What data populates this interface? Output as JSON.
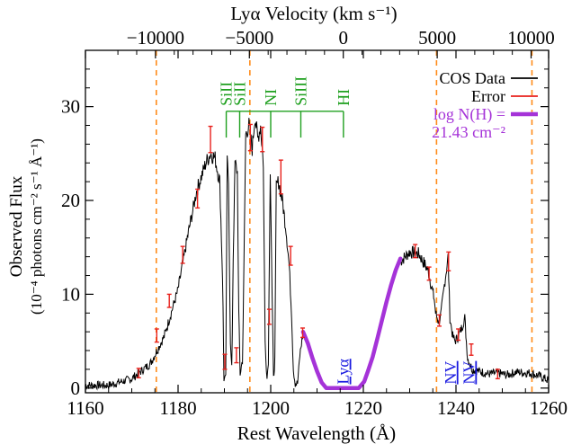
{
  "chart_data": {
    "type": "line",
    "xlabel": "Rest Wavelength (Å)",
    "xlim": [
      1160,
      1260
    ],
    "ylim": [
      -0.5,
      36
    ],
    "xticks": [
      1160,
      1180,
      1200,
      1220,
      1240,
      1260
    ],
    "yticks": [
      0,
      10,
      20,
      30
    ],
    "ylabel_line1": "Observed Flux",
    "ylabel_line2": "(10⁻⁴ photons cm⁻² s⁻¹ Å⁻¹)",
    "top_axis": {
      "label": "Lyα Velocity (km s⁻¹)",
      "ticks": [
        -10000,
        -5000,
        0,
        5000,
        10000
      ],
      "tick_labels": [
        "−10000",
        "−5000",
        "0",
        "5000",
        "10000"
      ],
      "center_wavelength": 1215.67
    },
    "colors": {
      "data": "#000000",
      "error": "#e8211c",
      "model": "#a533d8",
      "lines": "#1fa01f",
      "markers": "#ff8c1a",
      "nv_lya": "#1a1ae0"
    },
    "dashed_lines_x": [
      1175.3,
      1195.5,
      1235.8,
      1256.4
    ],
    "spectrum": {
      "name": "COS Data",
      "points": [
        [
          1160,
          0.3
        ],
        [
          1165,
          0.3
        ],
        [
          1170,
          1.0
        ],
        [
          1174,
          2.6
        ],
        [
          1177,
          5.5
        ],
        [
          1180,
          10.5
        ],
        [
          1182,
          16.0
        ],
        [
          1184,
          21.0
        ],
        [
          1186,
          24.0
        ],
        [
          1187,
          25.0
        ],
        [
          1188,
          24.5
        ],
        [
          1189,
          22.0
        ],
        [
          1189.6,
          12.0
        ],
        [
          1189.9,
          1.0
        ],
        [
          1190.3,
          1.0
        ],
        [
          1190.6,
          24.0
        ],
        [
          1190.9,
          22.5
        ],
        [
          1191.3,
          4.5
        ],
        [
          1191.6,
          2.0
        ],
        [
          1191.9,
          14.0
        ],
        [
          1192.3,
          24.0
        ],
        [
          1192.8,
          23.0
        ],
        [
          1193.1,
          8.0
        ],
        [
          1193.4,
          1.5
        ],
        [
          1193.9,
          3.0
        ],
        [
          1194.2,
          12.0
        ],
        [
          1194.6,
          27.0
        ],
        [
          1195.3,
          28.0
        ],
        [
          1196,
          25.5
        ],
        [
          1196.6,
          29.0
        ],
        [
          1197.2,
          26.5
        ],
        [
          1197.8,
          28.0
        ],
        [
          1198.4,
          24.0
        ],
        [
          1198.8,
          5.0
        ],
        [
          1199.2,
          1.0
        ],
        [
          1199.5,
          3.0
        ],
        [
          1199.9,
          23.5
        ],
        [
          1200.3,
          10.0
        ],
        [
          1200.6,
          1.0
        ],
        [
          1200.9,
          3.0
        ],
        [
          1201.2,
          21.5
        ],
        [
          1201.7,
          22.0
        ],
        [
          1202.5,
          20.0
        ],
        [
          1203.3,
          17.0
        ],
        [
          1204,
          13.0
        ],
        [
          1204.5,
          8.0
        ],
        [
          1204.9,
          2.0
        ],
        [
          1205.3,
          0.5
        ],
        [
          1205.8,
          0.5
        ],
        [
          1206.3,
          3.5
        ],
        [
          1207,
          6.0
        ]
      ]
    },
    "spectrum_after": {
      "points": [
        [
          1228,
          13.5
        ],
        [
          1230,
          14.5
        ],
        [
          1232,
          14.3
        ],
        [
          1234,
          12.5
        ],
        [
          1235.3,
          9.5
        ],
        [
          1235.6,
          8.0
        ],
        [
          1236.3,
          7.0
        ],
        [
          1236.8,
          8.0
        ],
        [
          1237.5,
          11.0
        ],
        [
          1238.3,
          14.0
        ],
        [
          1238.7,
          7.5
        ],
        [
          1239.3,
          5.5
        ],
        [
          1239.8,
          5.0
        ],
        [
          1240.5,
          5.5
        ],
        [
          1241.3,
          6.5
        ],
        [
          1241.9,
          7.5
        ],
        [
          1242.5,
          3.2
        ],
        [
          1243.5,
          2.0
        ],
        [
          1245,
          1.8
        ],
        [
          1247,
          1.5
        ],
        [
          1249,
          1.6
        ],
        [
          1251,
          1.4
        ],
        [
          1253,
          1.7
        ],
        [
          1256,
          1.6
        ],
        [
          1258,
          1.3
        ],
        [
          1260,
          0.8
        ]
      ]
    },
    "model": {
      "name": "log N(H) = 21.43 cm⁻²",
      "points": [
        [
          1207,
          6.0
        ],
        [
          1208,
          4.8
        ],
        [
          1209,
          3.2
        ],
        [
          1210,
          1.8
        ],
        [
          1211,
          0.6
        ],
        [
          1212,
          0.0
        ],
        [
          1219,
          0.0
        ],
        [
          1220.2,
          0.7
        ],
        [
          1221,
          1.8
        ],
        [
          1222,
          3.3
        ],
        [
          1223,
          5.2
        ],
        [
          1224,
          7.2
        ],
        [
          1225,
          9.2
        ],
        [
          1226,
          11.0
        ],
        [
          1227,
          12.6
        ],
        [
          1228,
          13.8
        ]
      ]
    },
    "error_bars": [
      [
        1171.5,
        1.6,
        0.5
      ],
      [
        1175.4,
        5.6,
        0.7
      ],
      [
        1178.1,
        9.3,
        0.7
      ],
      [
        1181,
        14.2,
        0.9
      ],
      [
        1184.2,
        20.2,
        1.0
      ],
      [
        1187,
        26.5,
        1.4
      ],
      [
        1190.1,
        2.8,
        0.8
      ],
      [
        1192.6,
        3.5,
        0.8
      ],
      [
        1195.6,
        26.7,
        1.4
      ],
      [
        1198.2,
        26.5,
        1.3
      ],
      [
        1199.7,
        7.6,
        0.8
      ],
      [
        1202.2,
        22.5,
        1.8
      ],
      [
        1204.3,
        14.1,
        1.0
      ],
      [
        1206.9,
        5.9,
        0.5
      ],
      [
        1231.2,
        14.6,
        0.7
      ],
      [
        1234.2,
        12.2,
        0.7
      ],
      [
        1236.4,
        7.2,
        0.6
      ],
      [
        1238.4,
        13.5,
        1.0
      ],
      [
        1240.5,
        5.7,
        0.6
      ],
      [
        1243.3,
        4.1,
        0.6
      ],
      [
        1249,
        1.5,
        0.5
      ]
    ],
    "line_ids": [
      {
        "label": "SiII",
        "x": 1190.4
      },
      {
        "label": "SiII",
        "x": 1193.3
      },
      {
        "label": "NI",
        "x": 1200.0
      },
      {
        "label": "SiIII",
        "x": 1206.5
      },
      {
        "label": "HI",
        "x": 1215.7
      }
    ],
    "line_bracket_y": 29.5,
    "line_tick_bottom": 26.7,
    "lower_labels": [
      {
        "label": "Lyα",
        "x": 1215.67
      },
      {
        "label": "NV",
        "x": 1238.8
      },
      {
        "label": "NV",
        "x": 1242.8
      }
    ],
    "legend": {
      "data": "COS Data",
      "error": "Error",
      "model_line1": "log N(H) =",
      "model_line2": "21.43 cm⁻²"
    }
  }
}
